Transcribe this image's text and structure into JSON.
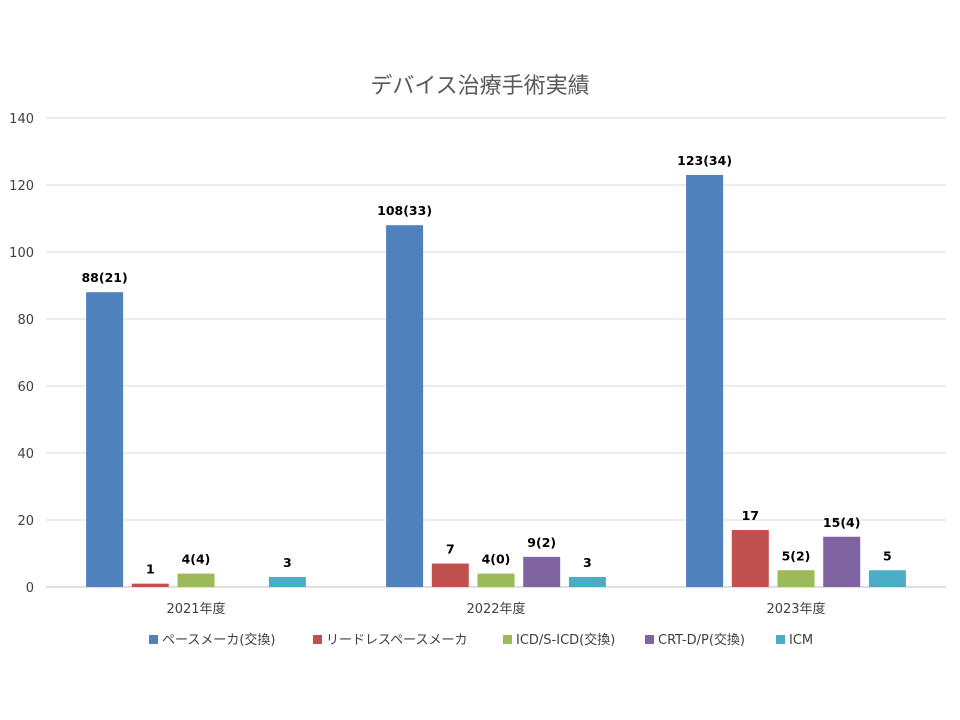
{
  "chart_data": {
    "type": "bar",
    "title": "デバイス治療手術実績",
    "xlabel": "",
    "ylabel": "",
    "ylim": [
      0,
      140
    ],
    "yticks": [
      0,
      20,
      40,
      60,
      80,
      100,
      120,
      140
    ],
    "grid": true,
    "legend_position": "bottom",
    "categories": [
      "2021年度",
      "2022年度",
      "2023年度"
    ],
    "series": [
      {
        "name": "ペースメーカ(交換)",
        "color": "#4F81BD",
        "values": [
          88,
          108,
          123
        ],
        "labels": [
          "88(21)",
          "108(33)",
          "123(34)"
        ]
      },
      {
        "name": "リードレスペースメーカ",
        "color": "#C0504D",
        "values": [
          1,
          7,
          17
        ],
        "labels": [
          "1",
          "7",
          "17"
        ]
      },
      {
        "name": "ICD/S-ICD(交換)",
        "color": "#9BBB59",
        "values": [
          4,
          4,
          5
        ],
        "labels": [
          "4(4)",
          "4(0)",
          "5(2)"
        ]
      },
      {
        "name": "CRT-D/P(交換)",
        "color": "#8064A2",
        "values": [
          null,
          9,
          15
        ],
        "labels": [
          null,
          "9(2)",
          "15(4)"
        ]
      },
      {
        "name": "ICM",
        "color": "#4BACC6",
        "values": [
          3,
          3,
          5
        ],
        "labels": [
          "3",
          "3",
          "5"
        ]
      }
    ]
  }
}
